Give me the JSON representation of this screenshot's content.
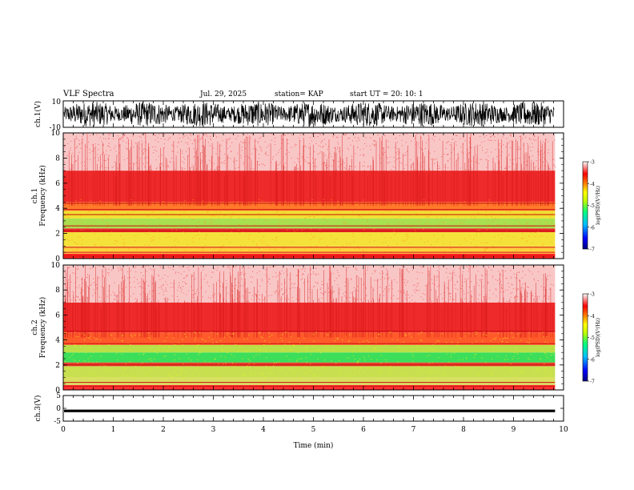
{
  "header": {
    "title": "VLF Spectra",
    "date": "Jul. 29, 2025",
    "station": "station= KAP",
    "start": "start UT =   20: 10: 1"
  },
  "chart_data": [
    {
      "type": "line",
      "panel": "ch1-waveform",
      "ylabel": "ch.1(V)",
      "ylim": [
        -10,
        10
      ],
      "yticks": [
        "10",
        "-10"
      ],
      "note_color": "#000000"
    },
    {
      "type": "heatmap",
      "panel": "ch1-spectrogram",
      "ylabel": "ch.1\nFrequency (kHz)",
      "ylabel_line1": "ch.1",
      "ylabel_line2": "Frequency (kHz)",
      "ylim": [
        0,
        10
      ],
      "yticks": [
        "0",
        "2",
        "4",
        "6",
        "8",
        "10"
      ],
      "bands": [
        {
          "from": 0,
          "to": 0.4,
          "color": "#ff2020"
        },
        {
          "from": 0.4,
          "to": 1.0,
          "color": "#ffd040"
        },
        {
          "from": 1.0,
          "to": 2.1,
          "color": "#f4e23a"
        },
        {
          "from": 2.1,
          "to": 2.4,
          "color": "#e8262a"
        },
        {
          "from": 2.4,
          "to": 3.2,
          "color": "#a8e050"
        },
        {
          "from": 3.2,
          "to": 3.8,
          "color": "#f0e030"
        },
        {
          "from": 3.8,
          "to": 4.5,
          "color": "#ff7a2a"
        },
        {
          "from": 4.5,
          "to": 7.0,
          "color": "#ee2a2a"
        },
        {
          "from": 7.0,
          "to": 10.0,
          "color": "#f9c6c6"
        }
      ],
      "colorbar": {
        "label": "log(PSD)(V²/Hz)",
        "ticks": [
          "-3",
          "-4",
          "-5",
          "-6",
          "-7"
        ],
        "range": [
          -7,
          -3
        ]
      }
    },
    {
      "type": "heatmap",
      "panel": "ch2-spectrogram",
      "ylabel": "ch.2\nFrequency (kHz)",
      "ylabel_line1": "ch.2",
      "ylabel_line2": "Frequency (kHz)",
      "ylim": [
        0,
        10
      ],
      "yticks": [
        "0",
        "2",
        "4",
        "6",
        "8",
        "10"
      ],
      "bands": [
        {
          "from": 0,
          "to": 0.4,
          "color": "#ff3030"
        },
        {
          "from": 0.4,
          "to": 1.0,
          "color": "#d8e060"
        },
        {
          "from": 1.0,
          "to": 1.9,
          "color": "#c8e050"
        },
        {
          "from": 1.9,
          "to": 2.2,
          "color": "#e8402a"
        },
        {
          "from": 2.2,
          "to": 3.0,
          "color": "#3cde5a"
        },
        {
          "from": 3.0,
          "to": 3.6,
          "color": "#b8e048"
        },
        {
          "from": 3.6,
          "to": 4.6,
          "color": "#ff5a2a"
        },
        {
          "from": 4.6,
          "to": 7.0,
          "color": "#ee2a2a"
        },
        {
          "from": 7.0,
          "to": 10.0,
          "color": "#f9c6c6"
        }
      ],
      "colorbar": {
        "label": "log(PSD)(V²/Hz)",
        "ticks": [
          "-3",
          "-4",
          "-5",
          "-6",
          "-7"
        ],
        "range": [
          -7,
          -3
        ]
      }
    },
    {
      "type": "line",
      "panel": "ch3-waveform",
      "ylabel": "ch.3(V)",
      "ylim": [
        -5,
        5
      ],
      "yticks": [
        "5",
        "0",
        "-5"
      ],
      "signal_level": -1,
      "signal_amplitude": 0.5
    }
  ],
  "xaxis": {
    "label": "Time (min)",
    "xlim": [
      0,
      10
    ],
    "ticks": [
      "0",
      "1",
      "2",
      "3",
      "4",
      "5",
      "6",
      "7",
      "8",
      "9",
      "10"
    ],
    "data_end": 9.83
  },
  "colors": {
    "colorbar_scale": [
      "#000080",
      "#0000ff",
      "#00c0ff",
      "#00ff80",
      "#c0ff00",
      "#ffff00",
      "#ff8000",
      "#ff0000",
      "#ffffff"
    ]
  }
}
